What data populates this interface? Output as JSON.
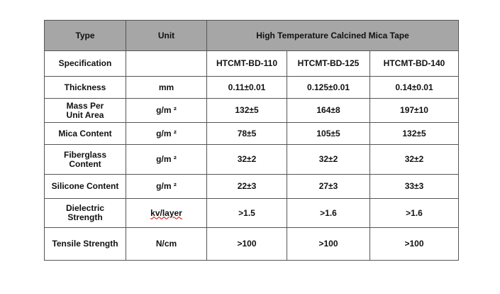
{
  "table": {
    "header": [
      "Type",
      "Unit",
      "High Temperature Calcined Mica Tape"
    ],
    "rows": [
      {
        "label": "Specification",
        "values": [
          "HTCMT-BD-110",
          "HTCMT-BD-125",
          "HTCMT-BD-140"
        ]
      },
      {
        "label": "Thickness",
        "unit": "mm",
        "values": [
          "0.11±0.01",
          "0.125±0.01",
          "0.14±0.01"
        ]
      },
      {
        "label": "Mass Per Unit Area",
        "unit": "g/m ²",
        "values": [
          "132±5",
          "164±8",
          "197±10"
        ]
      },
      {
        "label": "Mica Content",
        "unit": "g/m ²",
        "values": [
          "78±5",
          "105±5",
          "132±5"
        ]
      },
      {
        "label": "Fiberglass Content",
        "unit": "g/m ²",
        "values": [
          "32±2",
          "32±2",
          "32±2"
        ]
      },
      {
        "label": "Silicone Content",
        "unit": "g/m ²",
        "values": [
          "22±3",
          "27±3",
          "33±3"
        ]
      },
      {
        "label": "Dielectric Strength",
        "unit": "kv/layer",
        "values": [
          ">1.5",
          ">1.6",
          ">1.6"
        ]
      },
      {
        "label": "Tensile Strength",
        "unit": "N/cm",
        "values": [
          ">100",
          ">100",
          ">100"
        ]
      }
    ]
  }
}
